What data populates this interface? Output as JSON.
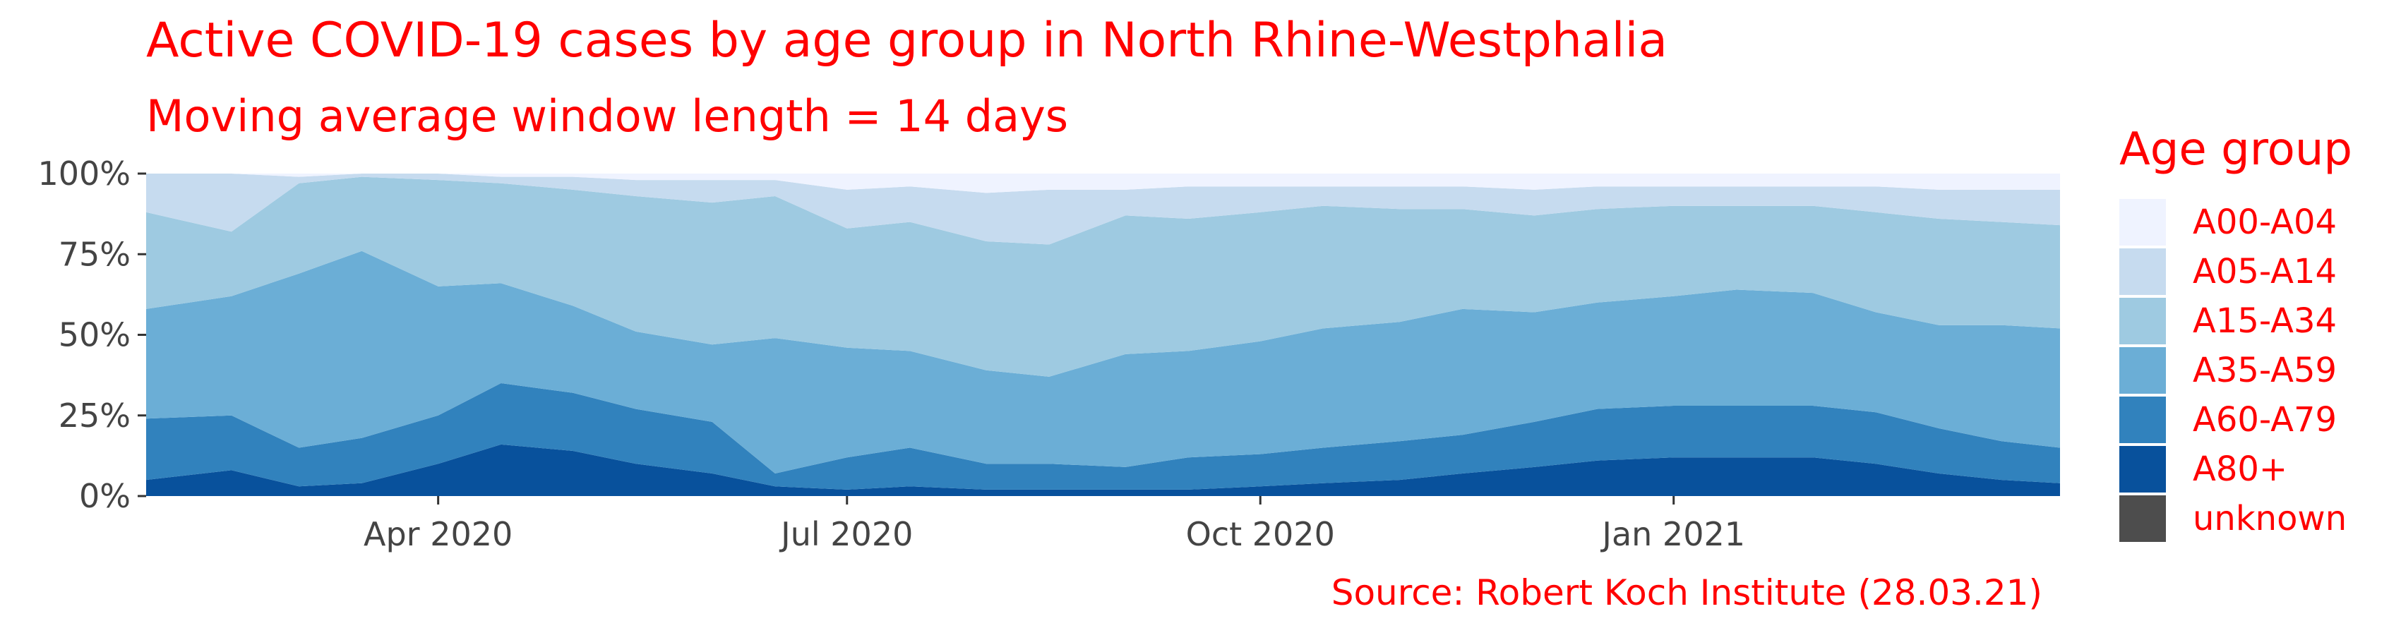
{
  "chart_data": {
    "type": "area",
    "stacking": "percent",
    "title": "Active COVID-19 cases by age group in North Rhine-Westphalia",
    "subtitle": "Moving average window length = 14 days",
    "caption": "Source: Robert Koch Institute (28.03.21)",
    "ylim": [
      0,
      100
    ],
    "y_ticks": [
      "0%",
      "25%",
      "50%",
      "75%",
      "100%"
    ],
    "x_ticks": [
      {
        "date": "2020-04-01",
        "label": "Apr 2020"
      },
      {
        "date": "2020-07-01",
        "label": "Jul 2020"
      },
      {
        "date": "2020-10-01",
        "label": "Oct 2020"
      },
      {
        "date": "2021-01-01",
        "label": "Jan 2021"
      }
    ],
    "x_range": [
      "2020-01-27",
      "2021-03-28"
    ],
    "grid": false,
    "legend_title": "Age group",
    "legend_position": "right",
    "x": [
      "2020-02-01",
      "2020-02-15",
      "2020-03-01",
      "2020-03-15",
      "2020-04-01",
      "2020-04-15",
      "2020-05-01",
      "2020-05-15",
      "2020-06-01",
      "2020-06-15",
      "2020-07-01",
      "2020-07-15",
      "2020-08-01",
      "2020-08-15",
      "2020-09-01",
      "2020-09-15",
      "2020-10-01",
      "2020-10-15",
      "2020-11-01",
      "2020-11-15",
      "2020-12-01",
      "2020-12-15",
      "2021-01-01",
      "2021-01-15",
      "2021-02-01",
      "2021-02-15",
      "2021-03-01",
      "2021-03-15",
      "2021-03-28"
    ],
    "series": [
      {
        "name": "unknown",
        "color": "#4d4d4d",
        "values": [
          0,
          0,
          0,
          0,
          0,
          0,
          0,
          0,
          0,
          0,
          0,
          0,
          0,
          0,
          0,
          0,
          0,
          0,
          0,
          0,
          0,
          0,
          0,
          0,
          0,
          0,
          0,
          0,
          0
        ]
      },
      {
        "name": "A80+",
        "color": "#08519c",
        "values": [
          5,
          8,
          3,
          4,
          10,
          16,
          14,
          10,
          7,
          3,
          2,
          3,
          2,
          2,
          2,
          2,
          3,
          4,
          5,
          7,
          9,
          11,
          12,
          12,
          12,
          10,
          7,
          5,
          4
        ]
      },
      {
        "name": "A60-A79",
        "color": "#3182bd",
        "values": [
          19,
          17,
          12,
          14,
          15,
          19,
          18,
          17,
          16,
          4,
          10,
          12,
          8,
          8,
          7,
          10,
          10,
          11,
          12,
          12,
          14,
          16,
          16,
          16,
          16,
          16,
          14,
          12,
          11
        ]
      },
      {
        "name": "A35-A59",
        "color": "#6baed6",
        "values": [
          34,
          37,
          54,
          58,
          40,
          31,
          27,
          24,
          24,
          42,
          34,
          30,
          29,
          27,
          35,
          33,
          35,
          37,
          37,
          39,
          34,
          33,
          34,
          36,
          35,
          31,
          32,
          36,
          37
        ]
      },
      {
        "name": "A15-A34",
        "color": "#9ecae1",
        "values": [
          30,
          20,
          28,
          23,
          33,
          31,
          36,
          42,
          44,
          44,
          37,
          40,
          40,
          41,
          43,
          41,
          40,
          38,
          35,
          31,
          30,
          29,
          28,
          26,
          27,
          31,
          33,
          32,
          32
        ]
      },
      {
        "name": "A05-A14",
        "color": "#c6dbef",
        "values": [
          12,
          18,
          2,
          1,
          2,
          2,
          4,
          5,
          7,
          5,
          12,
          11,
          15,
          17,
          8,
          10,
          8,
          6,
          7,
          7,
          8,
          7,
          6,
          6,
          6,
          8,
          9,
          10,
          11
        ]
      },
      {
        "name": "A00-A04",
        "color": "#eff3ff",
        "values": [
          0,
          0,
          1,
          0,
          0,
          1,
          1,
          2,
          2,
          2,
          5,
          4,
          6,
          5,
          5,
          4,
          4,
          4,
          4,
          4,
          5,
          4,
          4,
          4,
          4,
          4,
          5,
          5,
          5
        ]
      }
    ],
    "legend_order": [
      "A00-A04",
      "A05-A14",
      "A15-A34",
      "A35-A59",
      "A60-A79",
      "A80+",
      "unknown"
    ],
    "colors": {
      "A00-A04": "#eff3ff",
      "A05-A14": "#c6dbef",
      "A15-A34": "#9ecae1",
      "A35-A59": "#6baed6",
      "A60-A79": "#3182bd",
      "A80+": "#08519c",
      "unknown": "#4d4d4d"
    },
    "text_color": "#ff0000"
  }
}
